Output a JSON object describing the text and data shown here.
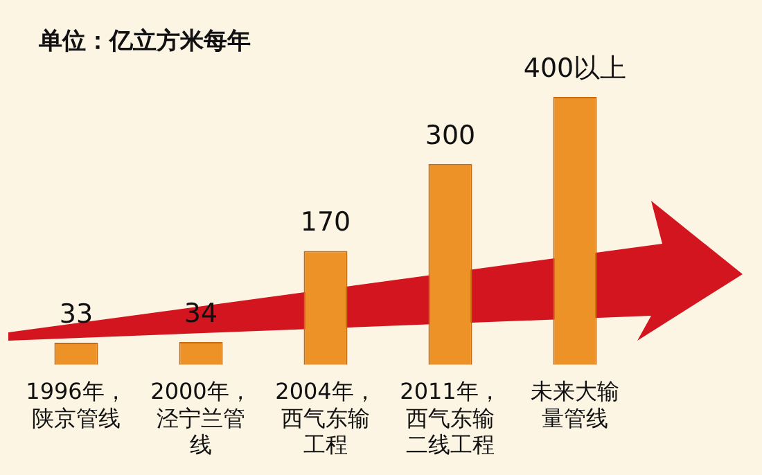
{
  "chart_data": {
    "type": "bar",
    "title": "单位：亿立方米每年",
    "categories": [
      "1996年，陕京管线",
      "2000年，泾宁兰管线",
      "2004年，西气东输工程",
      "2011年，西气东输二线工程",
      "未来大输量管线"
    ],
    "values": [
      33,
      34,
      170,
      300,
      400
    ],
    "value_labels": [
      "33",
      "34",
      "170",
      "300",
      "400以上"
    ],
    "color": "#ec9226",
    "tick_labels": "x"
  }
}
